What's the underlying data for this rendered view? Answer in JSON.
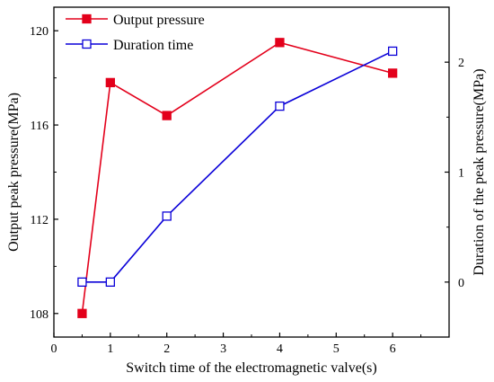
{
  "chart_data": {
    "type": "line",
    "xlabel": "Switch time of the electromagnetic valve(s)",
    "ylabel_left": "Output peak pressure(MPa)",
    "ylabel_right": "Duration of the peak pressure(MPa)",
    "xlim": [
      0,
      7
    ],
    "ylim_left": [
      107,
      121
    ],
    "ylim_right": [
      -0.5,
      2.5
    ],
    "x_ticks": [
      0,
      1,
      2,
      3,
      4,
      5,
      6
    ],
    "y_left_ticks": [
      108,
      112,
      116,
      120
    ],
    "y_right_ticks": [
      0,
      1,
      2
    ],
    "grid": false,
    "legend_position": "top-left",
    "series": [
      {
        "name": "Output pressure",
        "axis": "left",
        "color": "#e3001b",
        "marker": "filled-square",
        "x": [
          0.5,
          1,
          2,
          4,
          6
        ],
        "y": [
          108.0,
          117.8,
          116.4,
          119.5,
          118.2
        ]
      },
      {
        "name": "Duration time",
        "axis": "right",
        "color": "#0a00d8",
        "marker": "open-square",
        "x": [
          0.5,
          1,
          2,
          4,
          6
        ],
        "y": [
          0.0,
          0.0,
          0.6,
          1.6,
          2.1
        ]
      }
    ]
  }
}
